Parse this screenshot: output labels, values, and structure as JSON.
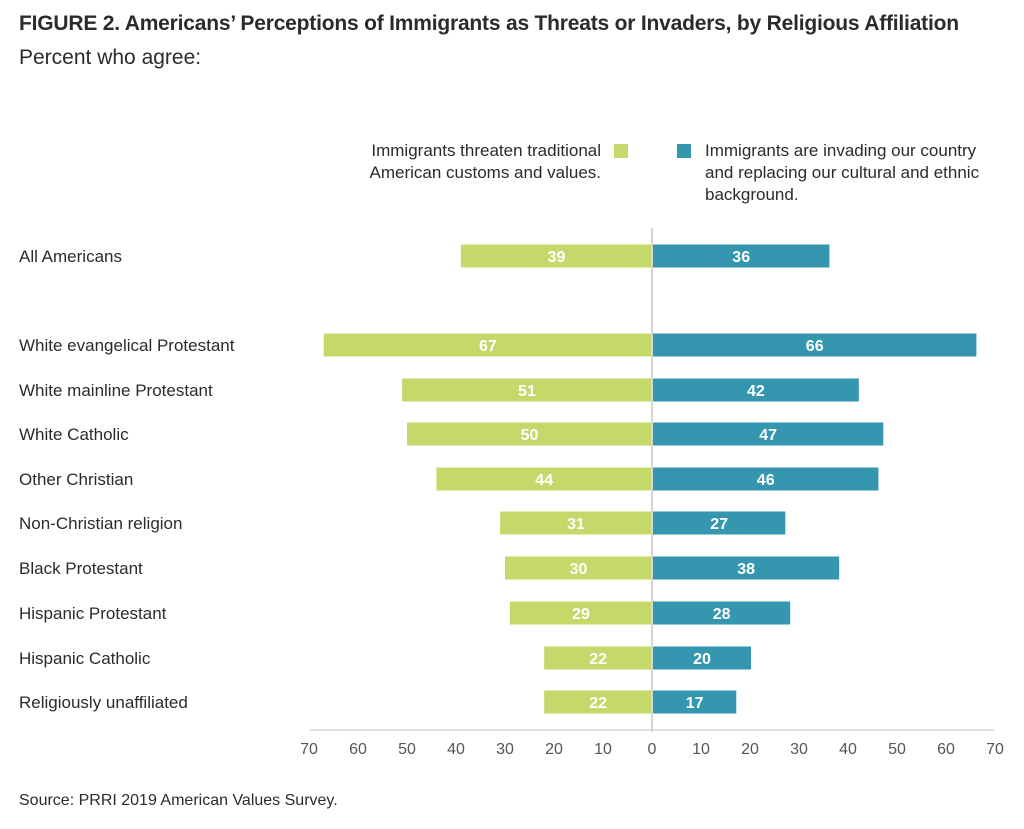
{
  "title": "FIGURE 2.  Americans’ Perceptions of Immigrants as Threats or Invaders, by Religious Affiliation",
  "subtitle": "Percent who agree:",
  "source": "Source: PRRI 2019 American Values Survey.",
  "colors": {
    "threaten": "#c4d96a",
    "invading": "#3596b0",
    "axis": "#d6d6d6"
  },
  "chart_data": {
    "type": "bar",
    "orientation": "horizontal-diverging",
    "categories": [
      "All Americans",
      "White evangelical Protestant",
      "White mainline Protestant",
      "White Catholic",
      "Other Christian",
      "Non-Christian religion",
      "Black Protestant",
      "Hispanic Protestant",
      "Hispanic Catholic",
      "Religiously unaffiliated"
    ],
    "series": [
      {
        "name": "Immigrants threaten traditional American customs and values.",
        "side": "left",
        "values": [
          39,
          67,
          51,
          50,
          44,
          31,
          30,
          29,
          22,
          22
        ]
      },
      {
        "name": "Immigrants are invading our country and replacing our cultural and ethnic background.",
        "side": "right",
        "values": [
          36,
          66,
          42,
          47,
          46,
          27,
          38,
          28,
          20,
          17
        ]
      }
    ],
    "xlim": [
      -70,
      70
    ],
    "tick_labels": [
      "70",
      "60",
      "50",
      "40",
      "30",
      "20",
      "10",
      "0",
      "10",
      "20",
      "30",
      "40",
      "50",
      "60",
      "70"
    ],
    "legend_position": "top-center",
    "grid": false
  }
}
